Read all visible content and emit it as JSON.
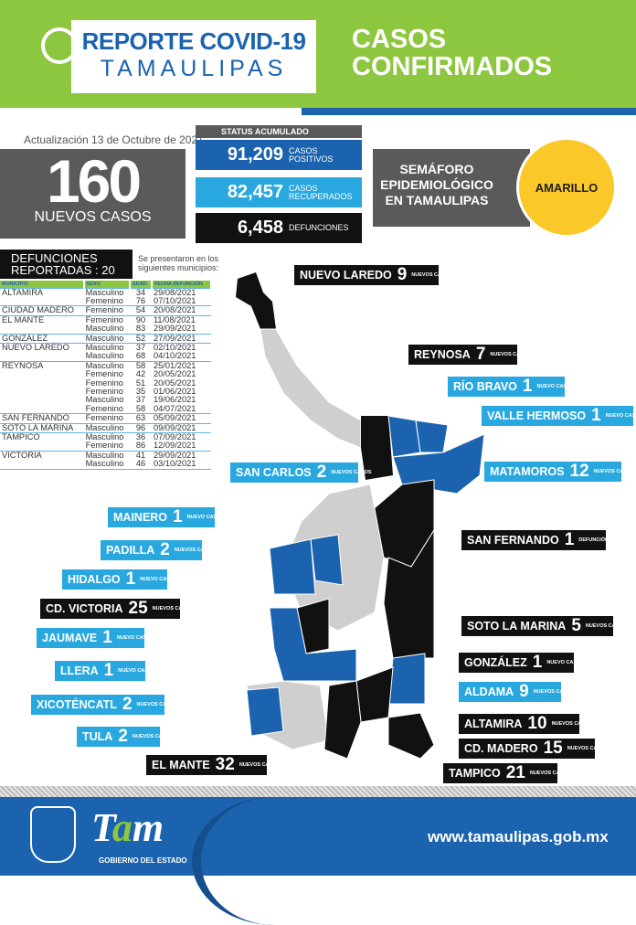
{
  "header": {
    "title_line1": "REPORTE COVID-19",
    "title_line2": "TAMAULIPAS",
    "section_title_line1": "CASOS",
    "section_title_line2": "CONFIRMADOS"
  },
  "update": "Actualización 13 de Octubre de 2021",
  "new_cases": {
    "value": "160",
    "label": "NUEVOS CASOS"
  },
  "status": {
    "title": "STATUS ACUMULADO",
    "items": [
      {
        "value": "91,209",
        "label1": "CASOS",
        "label2": "POSITIVOS",
        "color": "#1b63ae"
      },
      {
        "value": "82,457",
        "label1": "CASOS",
        "label2": "RECUPERADOS",
        "color": "#29a8e0"
      },
      {
        "value": "6,458",
        "label1": "DEFUNCIONES",
        "label2": "",
        "color": "#111111"
      }
    ]
  },
  "semaforo": {
    "title": "SEMÁFORO EPIDEMIOLÓGICO EN TAMAULIPAS",
    "level": "AMARILLO",
    "color": "#fbc82a"
  },
  "deaths": {
    "title_line1": "DEFUNCIONES",
    "title_line2": "REPORTADAS : 20",
    "note": "Se presentaron en los siguientes municipios:",
    "columns": [
      "MUNICIPIO",
      "SEXO",
      "EDAD",
      "FECHA DEFUNCIÓN"
    ],
    "rows": [
      [
        "ALTAMIRA",
        "Masculino",
        "34",
        "29/08/2021"
      ],
      [
        "",
        "Femenino",
        "76",
        "07/10/2021"
      ],
      [
        "CIUDAD MADERO",
        "Femenino",
        "54",
        "20/08/2021"
      ],
      [
        "EL MANTE",
        "Femenino",
        "90",
        "11/08/2021"
      ],
      [
        "",
        "Masculino",
        "83",
        "29/09/2021"
      ],
      [
        "GONZÁLEZ",
        "Masculino",
        "52",
        "27/09/2021"
      ],
      [
        "NUEVO LAREDO",
        "Masculino",
        "37",
        "02/10/2021"
      ],
      [
        "",
        "Masculino",
        "68",
        "04/10/2021"
      ],
      [
        "REYNOSA",
        "Masculino",
        "58",
        "25/01/2021"
      ],
      [
        "",
        "Femenino",
        "42",
        "20/05/2021"
      ],
      [
        "",
        "Femenino",
        "51",
        "20/05/2021"
      ],
      [
        "",
        "Femenino",
        "35",
        "01/06/2021"
      ],
      [
        "",
        "Masculino",
        "37",
        "19/06/2021"
      ],
      [
        "",
        "Femenino",
        "58",
        "04/07/2021"
      ],
      [
        "SAN FERNANDO",
        "Femenino",
        "63",
        "05/09/2021"
      ],
      [
        "SOTO LA MARINA",
        "Masculino",
        "96",
        "09/09/2021"
      ],
      [
        "TAMPICO",
        "Masculino",
        "36",
        "07/09/2021"
      ],
      [
        "",
        "Femenino",
        "86",
        "12/09/2021"
      ],
      [
        "VICTORIA",
        "Masculino",
        "41",
        "29/09/2021"
      ],
      [
        "",
        "Masculino",
        "46",
        "03/10/2021"
      ]
    ]
  },
  "map_labels": [
    {
      "name": "NUEVO LAREDO",
      "count": "9",
      "suffix": "NUEVOS CASOS",
      "style": "black"
    },
    {
      "name": "REYNOSA",
      "count": "7",
      "suffix": "NUEVOS CASOS",
      "style": "black"
    },
    {
      "name": "RÍO BRAVO",
      "count": "1",
      "suffix": "NUEVO CASO",
      "style": "blue"
    },
    {
      "name": "VALLE HERMOSO",
      "count": "1",
      "suffix": "NUEVO CASO",
      "style": "blue"
    },
    {
      "name": "MATAMOROS",
      "count": "12",
      "suffix": "NUEVOS CASOS",
      "style": "blue"
    },
    {
      "name": "SAN CARLOS",
      "count": "2",
      "suffix": "NUEVOS CASOS",
      "style": "blue"
    },
    {
      "name": "SAN FERNANDO",
      "count": "1",
      "suffix": "DEFUNCIÓN",
      "style": "black"
    },
    {
      "name": "MAINERO",
      "count": "1",
      "suffix": "NUEVO CASO",
      "style": "blue"
    },
    {
      "name": "PADILLA",
      "count": "2",
      "suffix": "NUEVOS CASOS",
      "style": "blue"
    },
    {
      "name": "HIDALGO",
      "count": "1",
      "suffix": "NUEVO CASO",
      "style": "blue"
    },
    {
      "name": "CD. VICTORIA",
      "count": "25",
      "suffix": "NUEVOS CASOS",
      "style": "black"
    },
    {
      "name": "SOTO LA MARINA",
      "count": "5",
      "suffix": "NUEVOS CASOS",
      "style": "black"
    },
    {
      "name": "JAUMAVE",
      "count": "1",
      "suffix": "NUEVO CASO",
      "style": "blue"
    },
    {
      "name": "GONZÁLEZ",
      "count": "1",
      "suffix": "NUEVO CASO",
      "style": "black"
    },
    {
      "name": "LLERA",
      "count": "1",
      "suffix": "NUEVO CASO",
      "style": "blue"
    },
    {
      "name": "ALDAMA",
      "count": "9",
      "suffix": "NUEVOS CASOS",
      "style": "blue"
    },
    {
      "name": "XICOTÉNCATL",
      "count": "2",
      "suffix": "NUEVOS CASOS",
      "style": "blue"
    },
    {
      "name": "ALTAMIRA",
      "count": "10",
      "suffix": "NUEVOS CASOS",
      "style": "black"
    },
    {
      "name": "TULA",
      "count": "2",
      "suffix": "NUEVOS CASOS",
      "style": "blue"
    },
    {
      "name": "CD. MADERO",
      "count": "15",
      "suffix": "NUEVOS CASOS",
      "style": "black"
    },
    {
      "name": "EL MANTE",
      "count": "32",
      "suffix": "NUEVOS CASOS",
      "style": "black"
    },
    {
      "name": "TAMPICO",
      "count": "21",
      "suffix": "NUEVOS CASOS",
      "style": "black"
    }
  ],
  "colors": {
    "green": "#8dc63f",
    "blue": "#1b63ae",
    "light_blue": "#29a8e0",
    "black": "#111111",
    "grey": "#5a5a5a",
    "map_grey": "#cfcfcf"
  },
  "footer": {
    "logo_text": "Tam",
    "logo_sub": "GOBIERNO DEL ESTADO",
    "url": "www.tamaulipas.gob.mx"
  }
}
